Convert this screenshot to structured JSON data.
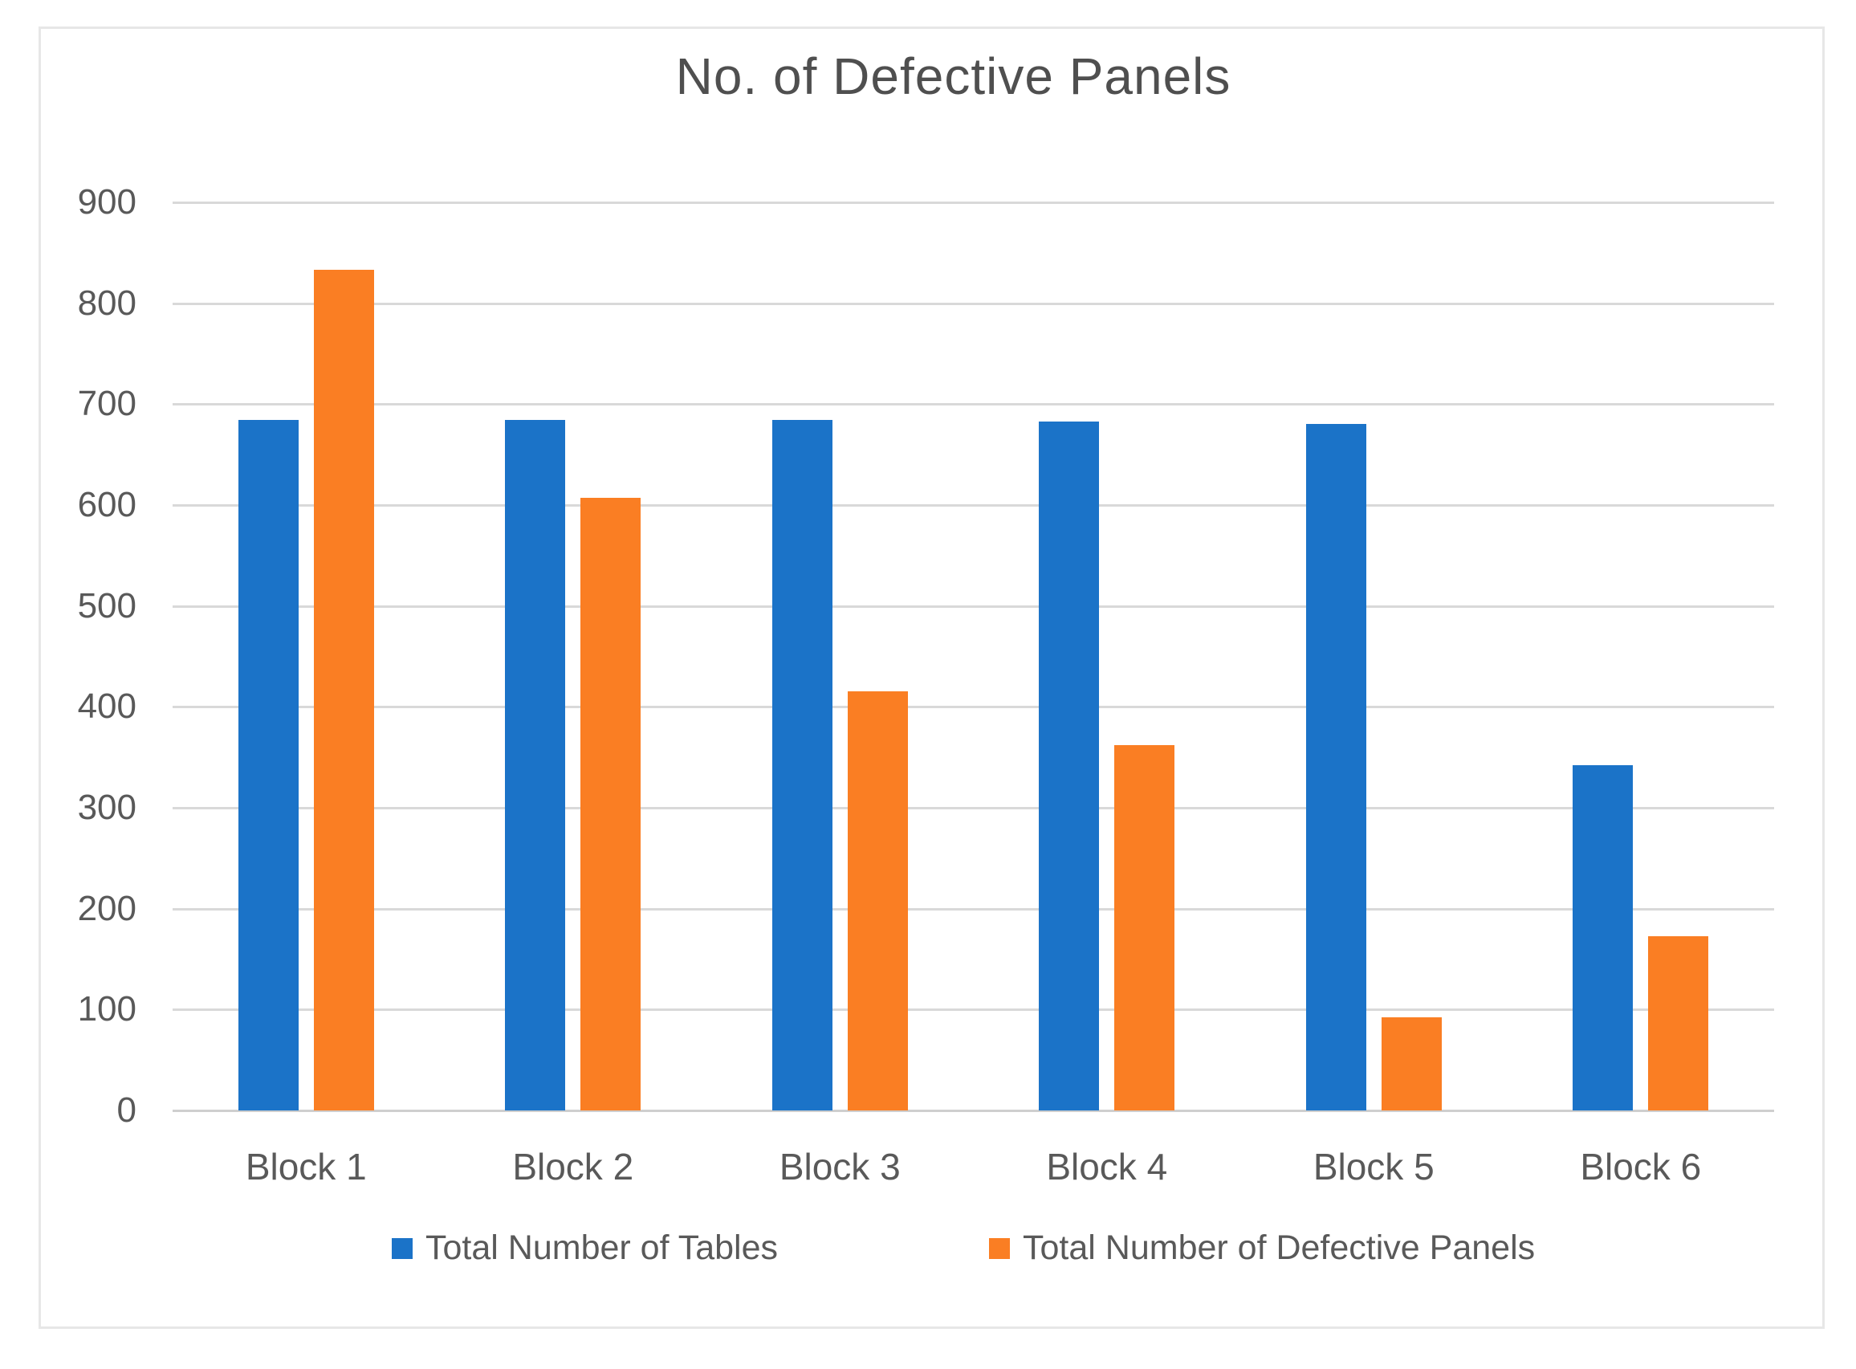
{
  "chart_data": {
    "type": "bar",
    "title": "No. of Defective Panels",
    "categories": [
      "Block 1",
      "Block 2",
      "Block 3",
      "Block 4",
      "Block 5",
      "Block 6"
    ],
    "series": [
      {
        "name": "Total Number of Tables",
        "color": "#1b73c8",
        "values": [
          684,
          684,
          684,
          683,
          680,
          342
        ]
      },
      {
        "name": "Total Number of Defective Panels",
        "color": "#fa7e23",
        "values": [
          833,
          607,
          415,
          362,
          92,
          173
        ]
      }
    ],
    "ylim": [
      0,
      900
    ],
    "ytick_interval": 100,
    "ytick_labels": [
      "0",
      "100",
      "200",
      "300",
      "400",
      "500",
      "600",
      "700",
      "800",
      "900"
    ],
    "xlabel": "",
    "ylabel": "",
    "grid": true,
    "legend_position": "bottom",
    "colors": {
      "gridline": "#d9d9d9",
      "axis_line": "#cfcfcf",
      "text": "#595959",
      "title_text": "#4f4f4f",
      "frame_border": "#e7e7e7",
      "background": "#ffffff"
    }
  }
}
